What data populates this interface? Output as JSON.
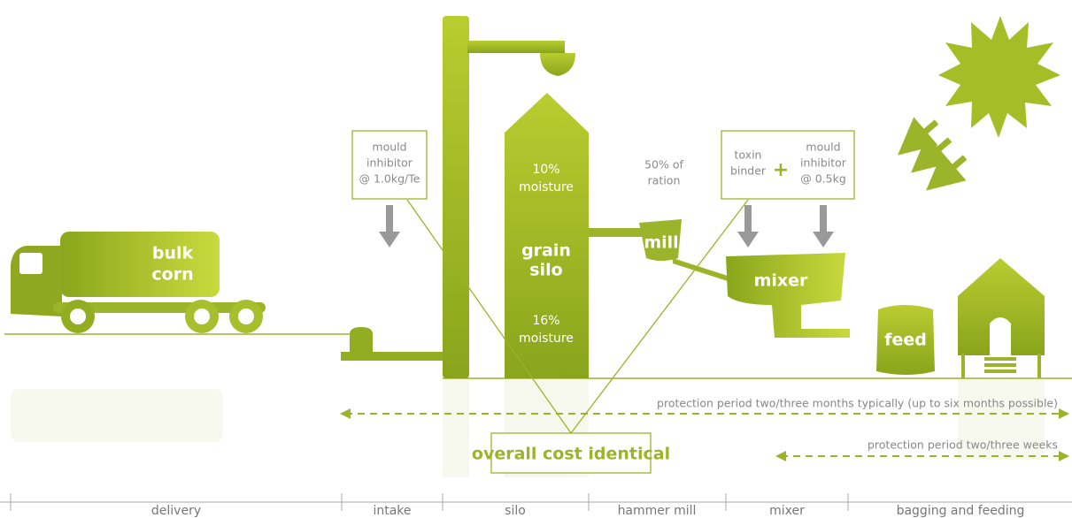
{
  "illustration": {
    "truck_label": [
      "bulk",
      "corn"
    ],
    "intake_box": [
      "mould",
      "inhibitor",
      "@ 1.0kg/Te"
    ],
    "silo_top": [
      "10%",
      "moisture"
    ],
    "silo_label": [
      "grain",
      "silo"
    ],
    "silo_bottom": [
      "16%",
      "moisture"
    ],
    "ration": [
      "50% of",
      "ration"
    ],
    "mill": "mill",
    "mixer": "mixer",
    "mixer_box": {
      "left": [
        "toxin",
        "binder"
      ],
      "plus": "+",
      "right": [
        "mould",
        "inhibitor",
        "@ 0.5kg"
      ]
    },
    "feed": "feed"
  },
  "protection": {
    "long": "protection period two/three months typically (up to six months possible)",
    "short": "protection period two/three weeks"
  },
  "summary": "overall cost identical",
  "stages": [
    "delivery",
    "intake",
    "silo",
    "hammer mill",
    "mixer",
    "bagging and feeding"
  ]
}
